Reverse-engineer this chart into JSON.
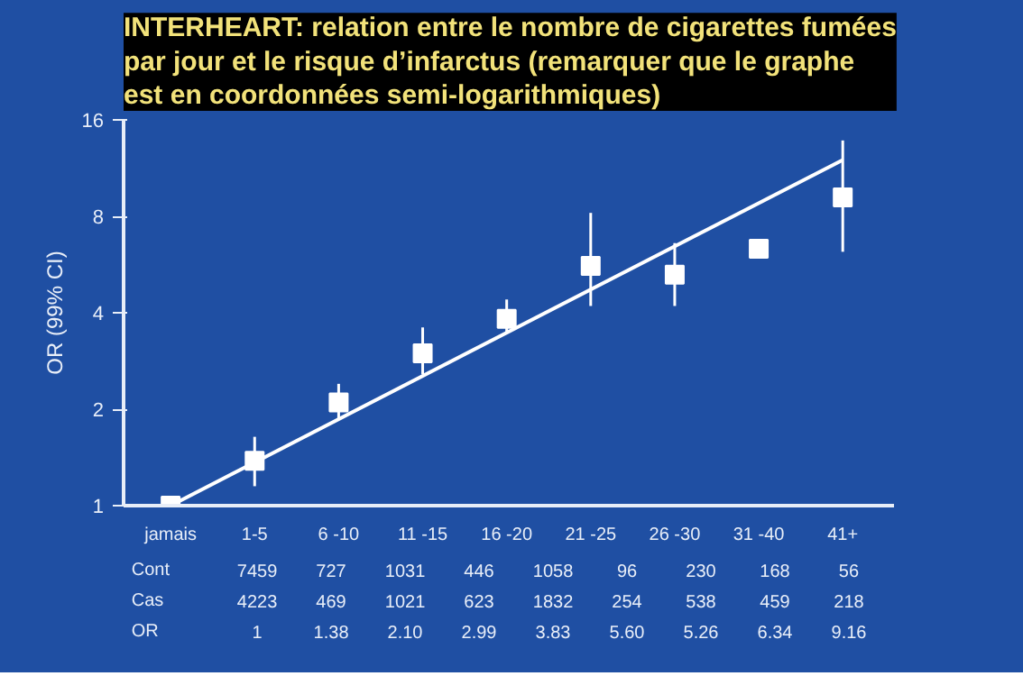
{
  "chart_data": {
    "type": "scatter",
    "title": "INTERHEART: relation entre le nombre de cigarettes fumées par jour et le risque d’infarctus (remarquer que le graphe est en coordonnées semi-logarithmiques)",
    "ylabel": "OR (99% CI)",
    "categories": [
      "jamais",
      "1-5",
      "6 -10",
      "11 -15",
      "16 -20",
      "21 -25",
      "26 -30",
      "31 -40",
      "41+"
    ],
    "series": [
      {
        "color": "#ffffff",
        "marker": "square",
        "values": [
          1,
          1.38,
          2.1,
          2.99,
          3.83,
          5.6,
          5.26,
          6.34,
          9.16
        ],
        "errors": [
          null,
          [
            1.15,
            1.64
          ],
          [
            1.86,
            2.4
          ],
          [
            2.57,
            3.6
          ],
          [
            3.46,
            4.4
          ],
          [
            4.2,
            8.2
          ],
          [
            4.2,
            6.6
          ],
          null,
          [
            6.2,
            13.8
          ]
        ]
      },
      {
        "type": "line",
        "color": "#ffffff",
        "x": [
          "jamais",
          "41+"
        ],
        "values": [
          1,
          12
        ]
      }
    ],
    "annotations": [
      "Cont 7459 727 1031 446 1058 96 230 168 56",
      "Cas 4223 469 1021 623 1832 254 538 459 218",
      "OR 1 1.38 2.10 2.99 3.83 5.60 5.26 6.34 9.16"
    ],
    "ylim": [
      1,
      16
    ],
    "yticks": [
      1,
      2,
      4,
      8,
      16
    ],
    "log": "y",
    "grid": false
  }
}
